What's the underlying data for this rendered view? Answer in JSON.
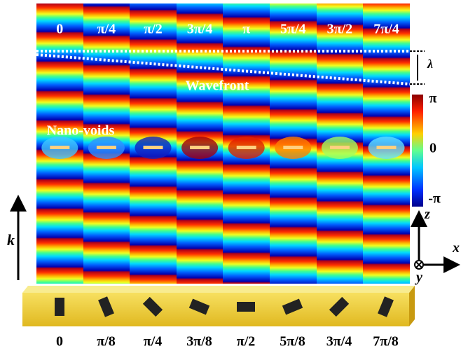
{
  "top_labels": [
    "0",
    "π/4",
    "π/2",
    "3π/4",
    "π",
    "5π/4",
    "3π/2",
    "7π/4"
  ],
  "bottom_labels": [
    "0",
    "π/8",
    "π/4",
    "3π/8",
    "π/2",
    "5π/8",
    "3π/4",
    "7π/8"
  ],
  "colorbar": {
    "max": "π",
    "mid": "0",
    "min": "-π"
  },
  "annotations": {
    "lambda": "λ",
    "wavefront": "Wavefront",
    "nano_voids": "Nano-voids",
    "k": "k"
  },
  "axes": {
    "z": "z",
    "x": "x",
    "y": "y"
  }
}
